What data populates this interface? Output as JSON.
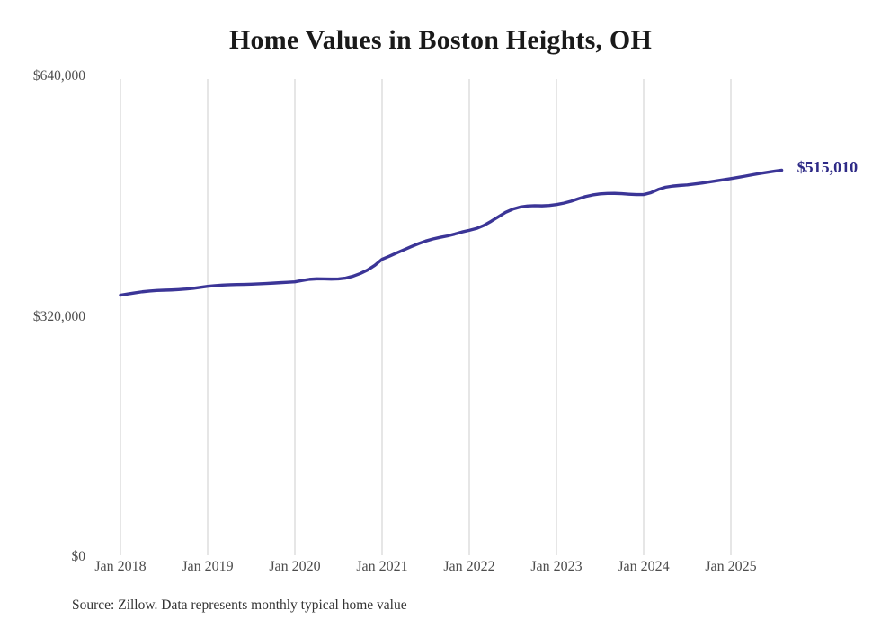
{
  "page": {
    "background_color": "#ffffff"
  },
  "chart_data": {
    "type": "line",
    "title": "Home Values in Boston Heights, OH",
    "xlabel": "",
    "ylabel": "",
    "x_start": "2018-01",
    "x_end": "2025-08",
    "x_interval": "monthly",
    "x_tick_labels": [
      "Jan 2018",
      "Jan 2019",
      "Jan 2020",
      "Jan 2021",
      "Jan 2022",
      "Jan 2023",
      "Jan 2024",
      "Jan 2025"
    ],
    "y_ticks": [
      {
        "label": "$0",
        "value": 0
      },
      {
        "label": "$320,000",
        "value": 320000
      },
      {
        "label": "$640,000",
        "value": 640000
      }
    ],
    "ylim": [
      0,
      640000
    ],
    "grid": "vertical-only",
    "grid_color": "#cccccc",
    "legend_position": "none",
    "line_color": "#3b3597",
    "end_label": "$515,010",
    "end_label_color": "#2f2b87",
    "tick_label_color": "#4d4d4d",
    "series": [
      {
        "name": "Monthly typical home value",
        "values": [
          348600,
          350300,
          351800,
          353200,
          354200,
          354900,
          355300,
          355600,
          356100,
          356800,
          357800,
          359100,
          360400,
          361400,
          362100,
          362500,
          362800,
          363000,
          363300,
          363700,
          364200,
          364700,
          365300,
          365800,
          366400,
          368200,
          369800,
          370400,
          370300,
          370100,
          370300,
          371400,
          373900,
          377500,
          382100,
          388400,
          396500,
          400500,
          404800,
          409000,
          413200,
          417200,
          420700,
          423500,
          425600,
          427500,
          430000,
          432800,
          435000,
          437500,
          441500,
          447000,
          453000,
          459000,
          463200,
          466000,
          467400,
          467800,
          467600,
          468100,
          469300,
          471200,
          473700,
          477000,
          480000,
          482100,
          483500,
          484100,
          484200,
          483800,
          483100,
          482600,
          482600,
          485100,
          489400,
          492400,
          493900,
          494800,
          495500,
          496600,
          497900,
          499400,
          500900,
          502400,
          503900,
          505500,
          507200,
          509000,
          510700,
          512200,
          513700,
          515010
        ]
      }
    ]
  },
  "footer": {
    "source_note": "Source: Zillow. Data represents monthly typical home value"
  }
}
